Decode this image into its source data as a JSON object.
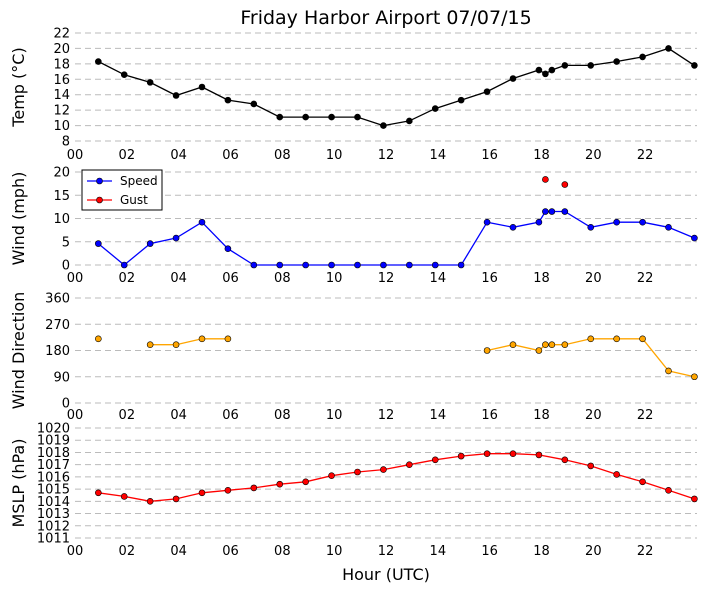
{
  "chart_data": {
    "title": "Friday Harbor Airport 07/07/15",
    "xlabel": "Hour (UTC)",
    "xlim": [
      0,
      24
    ],
    "xticks": [
      "00",
      "02",
      "04",
      "06",
      "08",
      "10",
      "12",
      "14",
      "16",
      "18",
      "20",
      "22"
    ],
    "panels": [
      {
        "id": "temp",
        "type": "line",
        "ylabel": "Temp (°C)",
        "ylim": [
          8,
          22
        ],
        "yticks": [
          "8",
          "10",
          "12",
          "14",
          "16",
          "18",
          "20",
          "22"
        ],
        "grid": true,
        "series": [
          {
            "color": "#000000",
            "x": [
              0.9,
              1.9,
              2.9,
              3.9,
              4.9,
              5.9,
              6.9,
              7.9,
              8.9,
              9.9,
              10.9,
              11.9,
              12.9,
              13.9,
              14.9,
              15.9,
              16.9,
              17.9,
              18.15,
              18.4,
              18.9,
              19.9,
              20.9,
              21.9,
              22.9,
              23.9
            ],
            "y": [
              18.3,
              16.6,
              15.6,
              13.9,
              15.0,
              13.3,
              12.8,
              11.1,
              11.1,
              11.1,
              11.1,
              10.0,
              10.6,
              12.2,
              13.3,
              14.4,
              16.1,
              17.2,
              16.7,
              17.2,
              17.8,
              17.8,
              18.3,
              18.9,
              20.0,
              17.8
            ]
          }
        ]
      },
      {
        "id": "wind",
        "type": "line",
        "ylabel": "Wind (mph)",
        "ylim": [
          0,
          20
        ],
        "yticks": [
          "0",
          "5",
          "10",
          "15",
          "20"
        ],
        "grid": true,
        "legend": "top-left",
        "series": [
          {
            "name": "Speed",
            "color": "#0000ff",
            "x": [
              0.9,
              1.9,
              2.9,
              3.9,
              4.9,
              5.9,
              6.9,
              7.9,
              8.9,
              9.9,
              10.9,
              11.9,
              12.9,
              13.9,
              14.9,
              15.9,
              16.9,
              17.9,
              18.15,
              18.4,
              18.9,
              19.9,
              20.9,
              21.9,
              22.9,
              23.9
            ],
            "y": [
              4.6,
              0,
              4.6,
              5.8,
              9.2,
              3.5,
              0,
              0,
              0,
              0,
              0,
              0,
              0,
              0,
              0,
              9.2,
              8.1,
              9.2,
              11.5,
              11.5,
              11.5,
              8.1,
              9.2,
              9.2,
              8.1,
              5.8
            ]
          },
          {
            "name": "Gust",
            "color": "#ff0000",
            "markers_only": true,
            "x": [
              18.15,
              18.9
            ],
            "y": [
              18.4,
              17.3
            ]
          }
        ]
      },
      {
        "id": "direction",
        "type": "line",
        "ylabel": "Wind Direction",
        "ylim": [
          0,
          360
        ],
        "yticks": [
          "0",
          "90",
          "180",
          "270",
          "360"
        ],
        "grid": true,
        "series": [
          {
            "color": "#ffa500",
            "x": [
              0.9,
              1.9,
              2.9,
              3.9,
              4.9,
              5.9,
              6.9,
              7.9,
              8.9,
              9.9,
              10.9,
              11.9,
              12.9,
              13.9,
              14.9,
              15.9,
              16.9,
              17.9,
              18.15,
              18.4,
              18.9,
              19.9,
              20.9,
              21.9,
              22.9,
              23.9
            ],
            "y": [
              220,
              null,
              200,
              200,
              220,
              220,
              null,
              null,
              null,
              null,
              null,
              null,
              null,
              null,
              null,
              180,
              200,
              180,
              200,
              200,
              200,
              220,
              220,
              220,
              110,
              90
            ]
          }
        ]
      },
      {
        "id": "mslp",
        "type": "line",
        "ylabel": "MSLP (hPa)",
        "ylim": [
          1011,
          1020
        ],
        "yticks": [
          "1011",
          "1012",
          "1013",
          "1014",
          "1015",
          "1016",
          "1017",
          "1018",
          "1019",
          "1020"
        ],
        "grid": true,
        "series": [
          {
            "color": "#ff0000",
            "x": [
              0.9,
              1.9,
              2.9,
              3.9,
              4.9,
              5.9,
              6.9,
              7.9,
              8.9,
              9.9,
              10.9,
              11.9,
              12.9,
              13.9,
              14.9,
              15.9,
              16.9,
              17.9,
              18.9,
              19.9,
              20.9,
              21.9,
              22.9,
              23.9
            ],
            "y": [
              1014.7,
              1014.4,
              1014.0,
              1014.2,
              1014.7,
              1014.9,
              1015.1,
              1015.4,
              1015.6,
              1016.1,
              1016.4,
              1016.6,
              1017.0,
              1017.4,
              1017.7,
              1017.9,
              1017.9,
              1017.8,
              1017.4,
              1016.9,
              1016.2,
              1015.6,
              1014.9,
              1014.2
            ]
          }
        ]
      }
    ]
  }
}
